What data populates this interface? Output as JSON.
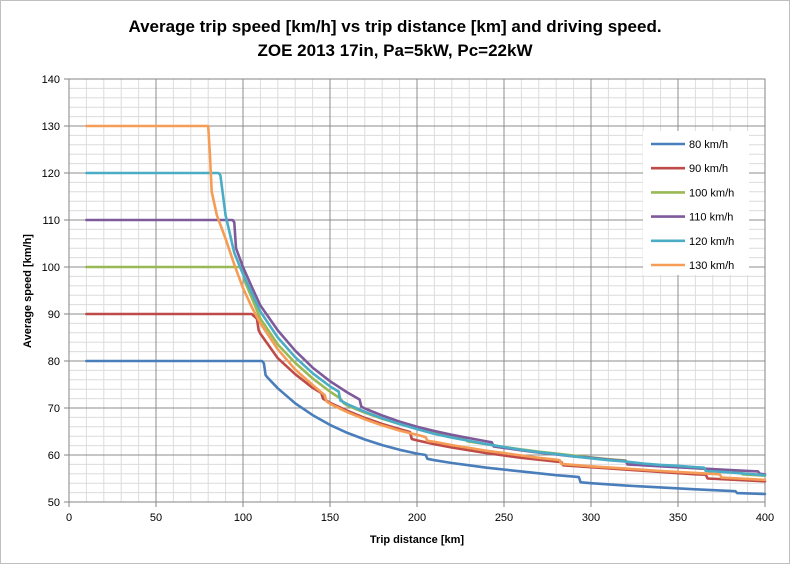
{
  "chart_data": {
    "type": "line",
    "title": "Average trip speed [km/h] vs trip distance [km] and driving speed.",
    "subtitle": "ZOE 2013 17in, Pa=5kW, Pc=22kW",
    "xlabel": "Trip distance [km]",
    "ylabel": "Average speed [km/h]",
    "xlim": [
      0,
      400
    ],
    "ylim": [
      50,
      140
    ],
    "xticks": [
      0,
      50,
      100,
      150,
      200,
      250,
      300,
      350,
      400
    ],
    "yticks": [
      50,
      60,
      70,
      80,
      90,
      100,
      110,
      120,
      130,
      140
    ],
    "grid": true,
    "legend_position": "top-right",
    "series": [
      {
        "name": "80 km/h",
        "color": "#4a7ebb",
        "points": [
          [
            10,
            80
          ],
          [
            111,
            80
          ],
          [
            112,
            79.5
          ],
          [
            113,
            77
          ],
          [
            114,
            76.5
          ],
          [
            120,
            74.2
          ],
          [
            130,
            71
          ],
          [
            140,
            68.5
          ],
          [
            150,
            66.4
          ],
          [
            160,
            64.7
          ],
          [
            170,
            63.3
          ],
          [
            180,
            62.1
          ],
          [
            190,
            61.1
          ],
          [
            200,
            60.3
          ],
          [
            205,
            60
          ],
          [
            206,
            59.2
          ],
          [
            210,
            58.9
          ],
          [
            220,
            58.3
          ],
          [
            230,
            57.8
          ],
          [
            240,
            57.3
          ],
          [
            250,
            56.9
          ],
          [
            260,
            56.5
          ],
          [
            270,
            56.1
          ],
          [
            280,
            55.7
          ],
          [
            290,
            55.4
          ],
          [
            293,
            55.3
          ],
          [
            294,
            54.2
          ],
          [
            300,
            54
          ],
          [
            320,
            53.5
          ],
          [
            340,
            53.1
          ],
          [
            360,
            52.7
          ],
          [
            383,
            52.3
          ],
          [
            384,
            51.9
          ],
          [
            400,
            51.7
          ]
        ]
      },
      {
        "name": "90 km/h",
        "color": "#be4b48",
        "points": [
          [
            10,
            90
          ],
          [
            105,
            90
          ],
          [
            108,
            89
          ],
          [
            109,
            86.5
          ],
          [
            110,
            85.8
          ],
          [
            120,
            80.6
          ],
          [
            130,
            77.2
          ],
          [
            140,
            74.3
          ],
          [
            145,
            73.2
          ],
          [
            146,
            72
          ],
          [
            150,
            71.1
          ],
          [
            160,
            69.4
          ],
          [
            170,
            67.9
          ],
          [
            180,
            66.6
          ],
          [
            190,
            65.5
          ],
          [
            196,
            64.9
          ],
          [
            197,
            63.4
          ],
          [
            200,
            63.1
          ],
          [
            210,
            62.3
          ],
          [
            220,
            61.6
          ],
          [
            230,
            61
          ],
          [
            240,
            60.4
          ],
          [
            250,
            59.9
          ],
          [
            260,
            59.4
          ],
          [
            270,
            59
          ],
          [
            280,
            58.6
          ],
          [
            283,
            58.5
          ],
          [
            284,
            57.8
          ],
          [
            300,
            57.4
          ],
          [
            320,
            56.9
          ],
          [
            340,
            56.4
          ],
          [
            360,
            55.9
          ],
          [
            366,
            55.8
          ],
          [
            367,
            55
          ],
          [
            400,
            54.4
          ]
        ]
      },
      {
        "name": "100 km/h",
        "color": "#98b954",
        "points": [
          [
            10,
            100
          ],
          [
            100,
            100
          ],
          [
            101,
            97
          ],
          [
            105,
            93.5
          ],
          [
            110,
            89
          ],
          [
            120,
            83.5
          ],
          [
            130,
            79.6
          ],
          [
            140,
            76.3
          ],
          [
            150,
            73.5
          ],
          [
            156,
            72
          ],
          [
            158,
            71
          ],
          [
            160,
            70.5
          ],
          [
            170,
            69
          ],
          [
            180,
            67.7
          ],
          [
            190,
            66.6
          ],
          [
            200,
            65.7
          ],
          [
            210,
            64.9
          ],
          [
            220,
            64.1
          ],
          [
            228,
            63.5
          ],
          [
            229,
            62.9
          ],
          [
            240,
            62.3
          ],
          [
            250,
            61.7
          ],
          [
            260,
            61.2
          ],
          [
            270,
            60.7
          ],
          [
            280,
            60.3
          ],
          [
            290,
            59.9
          ],
          [
            300,
            59.5
          ],
          [
            310,
            59.1
          ],
          [
            320,
            58.8
          ],
          [
            321,
            58.2
          ],
          [
            340,
            57.7
          ],
          [
            360,
            57.2
          ],
          [
            380,
            56.7
          ],
          [
            386,
            56.6
          ],
          [
            387,
            55.9
          ],
          [
            400,
            55.6
          ]
        ]
      },
      {
        "name": "110 km/h",
        "color": "#7e5a9b",
        "points": [
          [
            10,
            110
          ],
          [
            94,
            110
          ],
          [
            95,
            109.5
          ],
          [
            96,
            104
          ],
          [
            100,
            100
          ],
          [
            105,
            95.8
          ],
          [
            110,
            91.8
          ],
          [
            120,
            86.5
          ],
          [
            130,
            82.2
          ],
          [
            140,
            78.6
          ],
          [
            150,
            75.7
          ],
          [
            160,
            73.3
          ],
          [
            167,
            71.8
          ],
          [
            168,
            70.3
          ],
          [
            170,
            69.9
          ],
          [
            180,
            68.4
          ],
          [
            190,
            67.1
          ],
          [
            200,
            66
          ],
          [
            210,
            65.1
          ],
          [
            220,
            64.3
          ],
          [
            230,
            63.6
          ],
          [
            240,
            62.9
          ],
          [
            243,
            62.7
          ],
          [
            244,
            61.8
          ],
          [
            250,
            61.5
          ],
          [
            260,
            61
          ],
          [
            270,
            60.5
          ],
          [
            280,
            60.1
          ],
          [
            290,
            59.7
          ],
          [
            300,
            59.4
          ],
          [
            310,
            59
          ],
          [
            320,
            58.7
          ],
          [
            321,
            58
          ],
          [
            340,
            57.6
          ],
          [
            360,
            57.2
          ],
          [
            380,
            56.8
          ],
          [
            396,
            56.5
          ],
          [
            397,
            56
          ],
          [
            400,
            55.9
          ]
        ]
      },
      {
        "name": "120 km/h",
        "color": "#4bacc6",
        "points": [
          [
            10,
            120
          ],
          [
            86,
            120
          ],
          [
            87,
            119.5
          ],
          [
            90,
            111
          ],
          [
            95,
            103
          ],
          [
            100,
            98.5
          ],
          [
            105,
            94.5
          ],
          [
            110,
            90.5
          ],
          [
            120,
            85
          ],
          [
            130,
            80.8
          ],
          [
            140,
            77.4
          ],
          [
            150,
            74.6
          ],
          [
            155,
            73.5
          ],
          [
            156,
            71.6
          ],
          [
            160,
            70.8
          ],
          [
            170,
            69.2
          ],
          [
            180,
            67.8
          ],
          [
            190,
            66.6
          ],
          [
            200,
            65.5
          ],
          [
            210,
            64.5
          ],
          [
            220,
            63.7
          ],
          [
            230,
            63
          ],
          [
            240,
            62.3
          ],
          [
            250,
            61.7
          ],
          [
            260,
            61.1
          ],
          [
            270,
            60.6
          ],
          [
            280,
            60.2
          ],
          [
            290,
            59.7
          ],
          [
            300,
            59.3
          ],
          [
            310,
            58.9
          ],
          [
            320,
            58.6
          ],
          [
            330,
            58.2
          ],
          [
            340,
            57.9
          ],
          [
            350,
            57.7
          ],
          [
            360,
            57.4
          ],
          [
            365,
            57.3
          ],
          [
            366,
            56.6
          ],
          [
            380,
            56.3
          ],
          [
            400,
            55.7
          ]
        ]
      },
      {
        "name": "130 km/h",
        "color": "#f59d56",
        "points": [
          [
            10,
            130
          ],
          [
            79,
            130
          ],
          [
            80,
            130
          ],
          [
            81,
            124
          ],
          [
            82,
            116
          ],
          [
            85,
            111
          ],
          [
            90,
            106
          ],
          [
            95,
            100.5
          ],
          [
            100,
            95.5
          ],
          [
            105,
            91.5
          ],
          [
            110,
            88
          ],
          [
            120,
            82.5
          ],
          [
            130,
            78.2
          ],
          [
            140,
            74.9
          ],
          [
            147,
            72.7
          ],
          [
            148,
            71.4
          ],
          [
            150,
            70.9
          ],
          [
            160,
            69.1
          ],
          [
            170,
            67.6
          ],
          [
            180,
            66.3
          ],
          [
            190,
            65.2
          ],
          [
            200,
            64.3
          ],
          [
            205,
            63.8
          ],
          [
            206,
            63
          ],
          [
            210,
            62.8
          ],
          [
            220,
            62.1
          ],
          [
            230,
            61.5
          ],
          [
            240,
            60.9
          ],
          [
            250,
            60.4
          ],
          [
            260,
            59.9
          ],
          [
            270,
            59.4
          ],
          [
            280,
            59
          ],
          [
            282,
            58.9
          ],
          [
            283,
            58.1
          ],
          [
            300,
            57.6
          ],
          [
            320,
            57.1
          ],
          [
            340,
            56.6
          ],
          [
            360,
            56.2
          ],
          [
            374,
            55.9
          ],
          [
            375,
            55.2
          ],
          [
            400,
            54.7
          ]
        ]
      }
    ]
  }
}
